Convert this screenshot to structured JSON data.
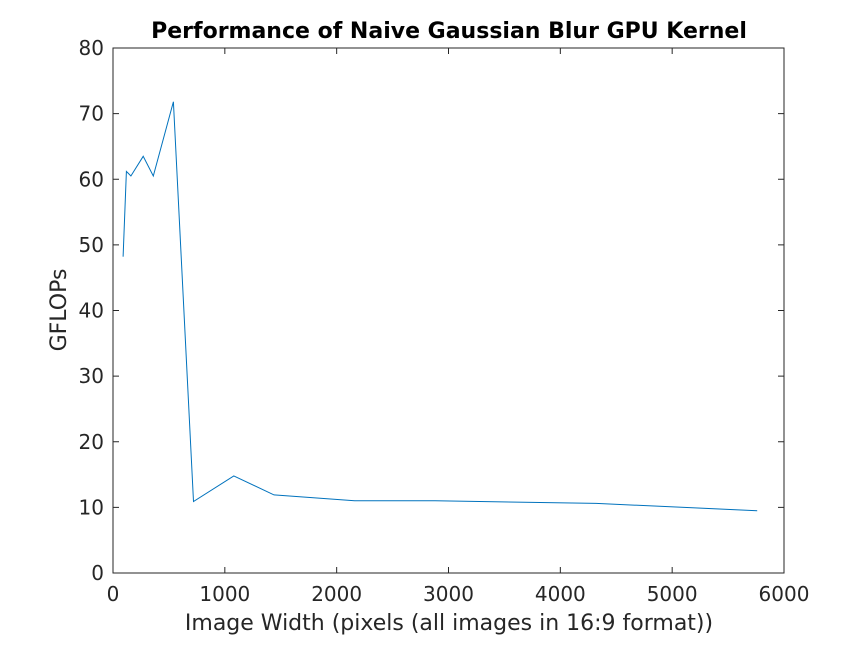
{
  "chart_data": {
    "type": "line",
    "title": "Performance of Naive Gaussian Blur GPU Kernel",
    "xlabel": "Image Width (pixels (all images in 16:9 format))",
    "ylabel": "GFLOPs",
    "xlim": [
      0,
      6000
    ],
    "ylim": [
      0,
      80
    ],
    "x_ticks": [
      0,
      1000,
      2000,
      3000,
      4000,
      5000,
      6000
    ],
    "y_ticks": [
      0,
      10,
      20,
      30,
      40,
      50,
      60,
      70,
      80
    ],
    "grid": false,
    "legend": "none",
    "line_color": "#0072bd",
    "series": [
      {
        "x": [
          90,
          120,
          160,
          270,
          360,
          540,
          720,
          1080,
          1440,
          2160,
          2880,
          4320,
          5760
        ],
        "y": [
          48.2,
          61.2,
          60.5,
          63.5,
          60.5,
          71.8,
          10.9,
          14.8,
          11.9,
          11.0,
          11.0,
          10.6,
          9.5
        ]
      }
    ]
  }
}
